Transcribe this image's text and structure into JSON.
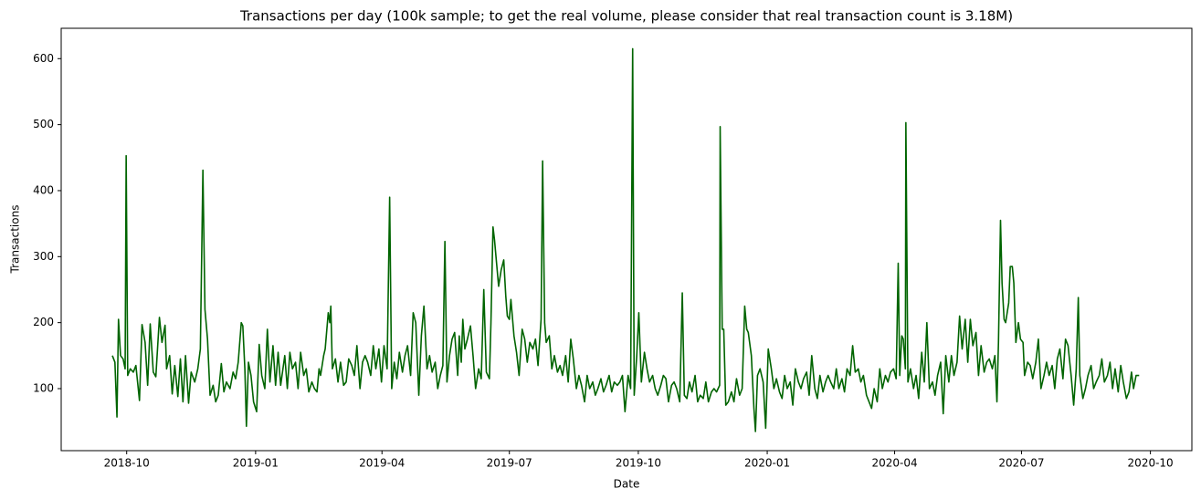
{
  "chart_data": {
    "type": "line",
    "title": "Transactions per day (100k sample; to get the real volume, please consider that real transaction count is 3.18M)",
    "x_label": "Date",
    "y_label": "Transactions",
    "color": "#006400",
    "grid": false,
    "xlim": [
      2018.62,
      2020.83
    ],
    "ylim": [
      6,
      646
    ],
    "xticks": [
      {
        "value": 2018.748,
        "label": "2018-10"
      },
      {
        "value": 2019.0,
        "label": "2019-01"
      },
      {
        "value": 2019.247,
        "label": "2019-04"
      },
      {
        "value": 2019.496,
        "label": "2019-07"
      },
      {
        "value": 2019.748,
        "label": "2019-10"
      },
      {
        "value": 2020.0,
        "label": "2020-01"
      },
      {
        "value": 2020.249,
        "label": "2020-04"
      },
      {
        "value": 2020.497,
        "label": "2020-07"
      },
      {
        "value": 2020.749,
        "label": "2020-10"
      }
    ],
    "yticks": [
      100,
      200,
      300,
      400,
      500,
      600
    ],
    "x": [
      2018.72,
      2018.725,
      2018.729,
      2018.732,
      2018.736,
      2018.741,
      2018.745,
      2018.747,
      2018.75,
      2018.755,
      2018.761,
      2018.766,
      2018.773,
      2018.778,
      2018.784,
      2018.789,
      2018.794,
      2018.8,
      2018.805,
      2018.812,
      2018.817,
      2018.823,
      2018.826,
      2018.832,
      2018.837,
      2018.842,
      2018.848,
      2018.853,
      2018.858,
      2018.863,
      2018.869,
      2018.874,
      2018.881,
      2018.887,
      2018.892,
      2018.897,
      2018.901,
      2018.906,
      2018.911,
      2018.917,
      2018.922,
      2018.927,
      2018.933,
      2018.938,
      2018.943,
      2018.95,
      2018.956,
      2018.961,
      2018.966,
      2018.972,
      2018.975,
      2018.979,
      2018.982,
      2018.986,
      2018.991,
      2018.996,
      2019.002,
      2019.007,
      2019.012,
      2019.018,
      2019.023,
      2019.028,
      2019.034,
      2019.039,
      2019.044,
      2019.049,
      2019.057,
      2019.062,
      2019.067,
      2019.072,
      2019.078,
      2019.083,
      2019.088,
      2019.094,
      2019.099,
      2019.104,
      2019.11,
      2019.115,
      2019.12,
      2019.124,
      2019.127,
      2019.133,
      2019.136,
      2019.142,
      2019.145,
      2019.147,
      2019.15,
      2019.156,
      2019.161,
      2019.166,
      2019.172,
      2019.177,
      2019.182,
      2019.188,
      2019.193,
      2019.198,
      2019.204,
      2019.209,
      2019.214,
      2019.219,
      2019.225,
      2019.23,
      2019.235,
      2019.241,
      2019.246,
      2019.251,
      2019.257,
      2019.262,
      2019.266,
      2019.271,
      2019.276,
      2019.281,
      2019.287,
      2019.292,
      2019.297,
      2019.303,
      2019.308,
      2019.313,
      2019.319,
      2019.324,
      2019.329,
      2019.335,
      2019.34,
      2019.345,
      2019.351,
      2019.356,
      2019.361,
      2019.366,
      2019.37,
      2019.374,
      2019.379,
      2019.384,
      2019.389,
      2019.395,
      2019.398,
      2019.402,
      2019.405,
      2019.409,
      2019.414,
      2019.42,
      2019.425,
      2019.43,
      2019.436,
      2019.441,
      2019.446,
      2019.451,
      2019.457,
      2019.46,
      2019.464,
      2019.467,
      2019.471,
      2019.475,
      2019.48,
      2019.485,
      2019.489,
      2019.492,
      2019.496,
      2019.499,
      2019.505,
      2019.51,
      2019.515,
      2019.521,
      2019.526,
      2019.531,
      2019.536,
      2019.542,
      2019.547,
      2019.552,
      2019.558,
      2019.561,
      2019.565,
      2019.568,
      2019.574,
      2019.579,
      2019.584,
      2019.59,
      2019.595,
      2019.6,
      2019.606,
      2019.611,
      2019.616,
      2019.621,
      2019.627,
      2019.632,
      2019.637,
      2019.643,
      2019.648,
      2019.653,
      2019.659,
      2019.664,
      2019.669,
      2019.675,
      2019.68,
      2019.685,
      2019.691,
      2019.696,
      2019.701,
      2019.707,
      2019.712,
      2019.717,
      2019.722,
      2019.728,
      2019.733,
      2019.737,
      2019.74,
      2019.745,
      2019.749,
      2019.754,
      2019.76,
      2019.765,
      2019.77,
      2019.776,
      2019.781,
      2019.786,
      2019.792,
      2019.797,
      2019.802,
      2019.807,
      2019.813,
      2019.818,
      2019.823,
      2019.829,
      2019.834,
      2019.838,
      2019.843,
      2019.848,
      2019.853,
      2019.859,
      2019.864,
      2019.869,
      2019.875,
      2019.88,
      2019.885,
      2019.891,
      2019.896,
      2019.901,
      2019.907,
      2019.908,
      2019.912,
      2019.915,
      2019.919,
      2019.924,
      2019.93,
      2019.935,
      2019.94,
      2019.946,
      2019.951,
      2019.956,
      2019.96,
      2019.963,
      2019.969,
      2019.974,
      2019.977,
      2019.981,
      2019.986,
      2019.992,
      2019.997,
      2020.002,
      2020.008,
      2020.013,
      2020.018,
      2020.024,
      2020.029,
      2020.034,
      2020.039,
      2020.045,
      2020.05,
      2020.055,
      2020.061,
      2020.066,
      2020.071,
      2020.077,
      2020.082,
      2020.087,
      2020.093,
      2020.098,
      2020.103,
      2020.109,
      2020.114,
      2020.119,
      2020.124,
      2020.13,
      2020.135,
      2020.14,
      2020.146,
      2020.151,
      2020.156,
      2020.162,
      2020.167,
      2020.172,
      2020.178,
      2020.183,
      2020.188,
      2020.194,
      2020.199,
      2020.204,
      2020.209,
      2020.215,
      2020.22,
      2020.225,
      2020.231,
      2020.236,
      2020.241,
      2020.247,
      2020.252,
      2020.256,
      2020.259,
      2020.263,
      2020.266,
      2020.27,
      2020.271,
      2020.275,
      2020.28,
      2020.286,
      2020.291,
      2020.296,
      2020.302,
      2020.307,
      2020.312,
      2020.317,
      2020.323,
      2020.328,
      2020.333,
      2020.339,
      2020.344,
      2020.349,
      2020.355,
      2020.36,
      2020.365,
      2020.371,
      2020.376,
      2020.381,
      2020.387,
      2020.392,
      2020.397,
      2020.402,
      2020.408,
      2020.413,
      2020.418,
      2020.424,
      2020.429,
      2020.434,
      2020.44,
      2020.445,
      2020.449,
      2020.452,
      2020.456,
      2020.459,
      2020.463,
      2020.466,
      2020.472,
      2020.475,
      2020.479,
      2020.482,
      2020.486,
      2020.491,
      2020.495,
      2020.5,
      2020.503,
      2020.509,
      2020.514,
      2020.519,
      2020.525,
      2020.53,
      2020.535,
      2020.541,
      2020.546,
      2020.551,
      2020.557,
      2020.562,
      2020.567,
      2020.572,
      2020.578,
      2020.583,
      2020.588,
      2020.594,
      2020.599,
      2020.604,
      2020.608,
      2020.611,
      2020.617,
      2020.622,
      2020.627,
      2020.633,
      2020.638,
      2020.643,
      2020.649,
      2020.654,
      2020.659,
      2020.665,
      2020.67,
      2020.675,
      2020.68,
      2020.686,
      2020.691,
      2020.696,
      2020.702,
      2020.707,
      2020.712,
      2020.716,
      2020.721,
      2020.727
    ],
    "values": [
      150,
      140,
      57,
      205,
      150,
      145,
      130,
      453,
      120,
      130,
      125,
      135,
      82,
      197,
      170,
      105,
      198,
      125,
      118,
      208,
      170,
      196,
      130,
      150,
      92,
      135,
      88,
      145,
      80,
      150,
      78,
      125,
      110,
      130,
      160,
      431,
      220,
      175,
      90,
      105,
      80,
      90,
      138,
      95,
      110,
      100,
      125,
      115,
      140,
      200,
      195,
      130,
      43,
      140,
      120,
      80,
      65,
      167,
      120,
      100,
      190,
      110,
      165,
      105,
      155,
      105,
      150,
      100,
      155,
      130,
      140,
      100,
      155,
      120,
      130,
      95,
      110,
      100,
      95,
      130,
      120,
      150,
      160,
      215,
      200,
      225,
      130,
      145,
      110,
      140,
      105,
      110,
      145,
      135,
      120,
      165,
      100,
      140,
      150,
      140,
      120,
      165,
      130,
      160,
      110,
      165,
      130,
      390,
      100,
      140,
      115,
      155,
      125,
      150,
      165,
      120,
      215,
      200,
      90,
      180,
      225,
      130,
      150,
      125,
      140,
      100,
      120,
      135,
      323,
      110,
      150,
      175,
      185,
      120,
      180,
      140,
      205,
      160,
      175,
      195,
      150,
      100,
      130,
      115,
      250,
      125,
      115,
      200,
      345,
      325,
      290,
      255,
      280,
      295,
      240,
      210,
      205,
      235,
      180,
      155,
      120,
      190,
      175,
      140,
      170,
      160,
      175,
      135,
      205,
      445,
      200,
      170,
      180,
      130,
      150,
      125,
      135,
      120,
      150,
      110,
      175,
      145,
      100,
      120,
      105,
      80,
      120,
      100,
      110,
      90,
      100,
      115,
      95,
      105,
      120,
      95,
      110,
      105,
      110,
      120,
      65,
      120,
      100,
      615,
      90,
      150,
      215,
      110,
      155,
      130,
      110,
      120,
      100,
      90,
      105,
      120,
      115,
      80,
      105,
      110,
      100,
      80,
      245,
      90,
      85,
      110,
      95,
      120,
      80,
      90,
      85,
      110,
      80,
      95,
      100,
      95,
      105,
      497,
      190,
      190,
      75,
      80,
      95,
      80,
      115,
      90,
      100,
      225,
      190,
      185,
      150,
      70,
      35,
      120,
      130,
      110,
      40,
      160,
      130,
      100,
      115,
      95,
      85,
      120,
      100,
      110,
      75,
      130,
      110,
      100,
      115,
      125,
      90,
      150,
      100,
      85,
      120,
      95,
      110,
      120,
      110,
      100,
      130,
      100,
      115,
      95,
      130,
      120,
      165,
      125,
      130,
      110,
      120,
      90,
      80,
      70,
      100,
      80,
      130,
      100,
      120,
      110,
      125,
      130,
      115,
      290,
      120,
      180,
      175,
      130,
      503,
      110,
      130,
      100,
      120,
      85,
      155,
      110,
      200,
      100,
      110,
      90,
      120,
      140,
      62,
      150,
      110,
      150,
      120,
      140,
      210,
      160,
      205,
      140,
      205,
      165,
      185,
      120,
      165,
      125,
      140,
      145,
      130,
      150,
      80,
      170,
      355,
      260,
      205,
      200,
      230,
      285,
      285,
      260,
      170,
      200,
      175,
      170,
      120,
      140,
      135,
      115,
      140,
      175,
      100,
      120,
      140,
      120,
      135,
      100,
      145,
      160,
      115,
      175,
      165,
      120,
      75,
      130,
      238,
      120,
      85,
      100,
      120,
      135,
      100,
      110,
      120,
      145,
      110,
      120,
      140,
      100,
      130,
      95,
      135,
      110,
      85,
      95,
      125,
      100,
      120,
      120
    ]
  }
}
